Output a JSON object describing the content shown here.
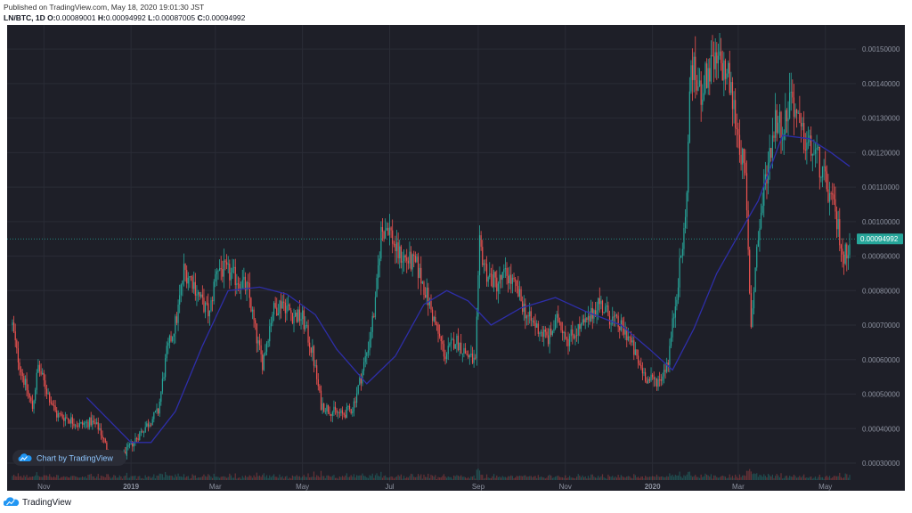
{
  "header": {
    "published": "Published on TradingView.com, May 18, 2020 19:01:30 JST",
    "symbol": "LN/BTC, 1D",
    "o_label": "O:",
    "o_value": "0.00089001",
    "h_label": "H:",
    "h_value": "0.00094992",
    "l_label": "L:",
    "l_value": "0.00087005",
    "c_label": "C:",
    "c_value": "0.00094992"
  },
  "watermark": "Chart by TradingView",
  "footer_brand": "TradingView",
  "colors": {
    "background": "#1e1f28",
    "up": "#26a69a",
    "down": "#ef5350",
    "ma": "#2e2ea8",
    "price_line": "#26a69a",
    "price_badge": "#26a69a",
    "grid": "#2a2c36",
    "axis_text": "#8d92a0"
  },
  "chart_data": {
    "type": "candlestick",
    "symbol": "LN/BTC",
    "interval": "1D",
    "x_start": "2018-10-10",
    "x_end": "2020-05-18",
    "ylim": [
      0.00022,
      0.00157
    ],
    "y_ticks": [
      "0.00030000",
      "0.00040000",
      "0.00050000",
      "0.00060000",
      "0.00070000",
      "0.00080000",
      "0.00090000",
      "0.00100000",
      "0.00110000",
      "0.00120000",
      "0.00130000",
      "0.00140000",
      "0.00150000"
    ],
    "x_ticks": [
      {
        "date": "2018-11-01",
        "label": "Nov"
      },
      {
        "date": "2019-01-01",
        "label": "2019"
      },
      {
        "date": "2019-03-01",
        "label": "Mar"
      },
      {
        "date": "2019-05-01",
        "label": "May"
      },
      {
        "date": "2019-07-01",
        "label": "Jul"
      },
      {
        "date": "2019-09-01",
        "label": "Sep"
      },
      {
        "date": "2019-11-01",
        "label": "Nov"
      },
      {
        "date": "2020-01-01",
        "label": "2020"
      },
      {
        "date": "2020-03-01",
        "label": "Mar"
      },
      {
        "date": "2020-05-01",
        "label": "May"
      }
    ],
    "last_price": "0.00094992",
    "grid": true,
    "price_path": [
      [
        "2018-10-10",
        0.0007
      ],
      [
        "2018-10-13",
        0.00062
      ],
      [
        "2018-10-18",
        0.00054
      ],
      [
        "2018-10-24",
        0.00046
      ],
      [
        "2018-10-28",
        0.00058
      ],
      [
        "2018-11-04",
        0.0005
      ],
      [
        "2018-11-10",
        0.00044
      ],
      [
        "2018-11-18",
        0.00043
      ],
      [
        "2018-11-26",
        0.00041
      ],
      [
        "2018-12-04",
        0.00042
      ],
      [
        "2018-12-10",
        0.0004
      ],
      [
        "2018-12-16",
        0.00033
      ],
      [
        "2018-12-22",
        0.0003
      ],
      [
        "2018-12-28",
        0.00033
      ],
      [
        "2019-01-06",
        0.00038
      ],
      [
        "2019-01-12",
        0.00041
      ],
      [
        "2019-01-20",
        0.00045
      ],
      [
        "2019-01-26",
        0.00062
      ],
      [
        "2019-02-02",
        0.00072
      ],
      [
        "2019-02-07",
        0.00086
      ],
      [
        "2019-02-13",
        0.00083
      ],
      [
        "2019-02-19",
        0.00077
      ],
      [
        "2019-02-25",
        0.00073
      ],
      [
        "2019-03-02",
        0.00087
      ],
      [
        "2019-03-10",
        0.00085
      ],
      [
        "2019-03-18",
        0.00083
      ],
      [
        "2019-03-24",
        0.0008
      ],
      [
        "2019-03-30",
        0.00066
      ],
      [
        "2019-04-03",
        0.00059
      ],
      [
        "2019-04-10",
        0.00074
      ],
      [
        "2019-04-17",
        0.00077
      ],
      [
        "2019-04-24",
        0.00073
      ],
      [
        "2019-05-01",
        0.00072
      ],
      [
        "2019-05-08",
        0.00062
      ],
      [
        "2019-05-14",
        0.00047
      ],
      [
        "2019-05-22",
        0.00045
      ],
      [
        "2019-05-29",
        0.00044
      ],
      [
        "2019-06-05",
        0.00046
      ],
      [
        "2019-06-11",
        0.00055
      ],
      [
        "2019-06-16",
        0.00064
      ],
      [
        "2019-06-21",
        0.00076
      ],
      [
        "2019-06-25",
        0.00097
      ],
      [
        "2019-06-30",
        0.00099
      ],
      [
        "2019-07-06",
        0.00091
      ],
      [
        "2019-07-13",
        0.00089
      ],
      [
        "2019-07-20",
        0.00087
      ],
      [
        "2019-07-26",
        0.0008
      ],
      [
        "2019-08-02",
        0.0007
      ],
      [
        "2019-08-09",
        0.00061
      ],
      [
        "2019-08-16",
        0.00066
      ],
      [
        "2019-08-23",
        0.00062
      ],
      [
        "2019-08-30",
        0.00059
      ],
      [
        "2019-09-02",
        0.00093
      ],
      [
        "2019-09-07",
        0.00085
      ],
      [
        "2019-09-14",
        0.00082
      ],
      [
        "2019-09-21",
        0.00085
      ],
      [
        "2019-09-28",
        0.0008
      ],
      [
        "2019-10-06",
        0.00072
      ],
      [
        "2019-10-13",
        0.00069
      ],
      [
        "2019-10-20",
        0.00066
      ],
      [
        "2019-10-27",
        0.00072
      ],
      [
        "2019-11-03",
        0.00066
      ],
      [
        "2019-11-10",
        0.00069
      ],
      [
        "2019-11-17",
        0.00071
      ],
      [
        "2019-11-24",
        0.00077
      ],
      [
        "2019-12-01",
        0.00073
      ],
      [
        "2019-12-08",
        0.0007
      ],
      [
        "2019-12-15",
        0.00067
      ],
      [
        "2019-12-22",
        0.00059
      ],
      [
        "2019-12-29",
        0.00054
      ],
      [
        "2020-01-06",
        0.00054
      ],
      [
        "2020-01-12",
        0.0006
      ],
      [
        "2020-01-18",
        0.0008
      ],
      [
        "2020-01-24",
        0.001
      ],
      [
        "2020-01-28",
        0.00146
      ],
      [
        "2020-02-03",
        0.00137
      ],
      [
        "2020-02-10",
        0.00144
      ],
      [
        "2020-02-17",
        0.00146
      ],
      [
        "2020-02-23",
        0.00142
      ],
      [
        "2020-02-29",
        0.00128
      ],
      [
        "2020-03-06",
        0.00112
      ],
      [
        "2020-03-10",
        0.0007
      ],
      [
        "2020-03-14",
        0.00092
      ],
      [
        "2020-03-20",
        0.00112
      ],
      [
        "2020-03-27",
        0.0013
      ],
      [
        "2020-04-02",
        0.00127
      ],
      [
        "2020-04-07",
        0.00138
      ],
      [
        "2020-04-13",
        0.00126
      ],
      [
        "2020-04-19",
        0.00122
      ],
      [
        "2020-04-25",
        0.00119
      ],
      [
        "2020-05-01",
        0.00111
      ],
      [
        "2020-05-06",
        0.00105
      ],
      [
        "2020-05-11",
        0.00096
      ],
      [
        "2020-05-14",
        0.00089
      ],
      [
        "2020-05-18",
        0.00095
      ]
    ],
    "moving_average": [
      [
        "2018-12-01",
        0.00049
      ],
      [
        "2019-01-01",
        0.00036
      ],
      [
        "2019-01-15",
        0.00036
      ],
      [
        "2019-02-01",
        0.00045
      ],
      [
        "2019-02-20",
        0.00064
      ],
      [
        "2019-03-10",
        0.0008
      ],
      [
        "2019-04-01",
        0.00081
      ],
      [
        "2019-04-20",
        0.00079
      ],
      [
        "2019-05-10",
        0.00073
      ],
      [
        "2019-05-25",
        0.00063
      ],
      [
        "2019-06-15",
        0.00053
      ],
      [
        "2019-07-05",
        0.00061
      ],
      [
        "2019-07-25",
        0.00076
      ],
      [
        "2019-08-10",
        0.0008
      ],
      [
        "2019-08-25",
        0.00077
      ],
      [
        "2019-09-10",
        0.0007
      ],
      [
        "2019-10-01",
        0.00075
      ],
      [
        "2019-10-25",
        0.00078
      ],
      [
        "2019-11-15",
        0.00074
      ],
      [
        "2019-12-10",
        0.0007
      ],
      [
        "2019-12-30",
        0.00063
      ],
      [
        "2020-01-15",
        0.00057
      ],
      [
        "2020-01-30",
        0.00069
      ],
      [
        "2020-02-15",
        0.00085
      ],
      [
        "2020-03-01",
        0.00096
      ],
      [
        "2020-03-15",
        0.00106
      ],
      [
        "2020-04-01",
        0.00125
      ],
      [
        "2020-04-20",
        0.00124
      ],
      [
        "2020-05-05",
        0.0012
      ],
      [
        "2020-05-18",
        0.00116
      ]
    ]
  }
}
